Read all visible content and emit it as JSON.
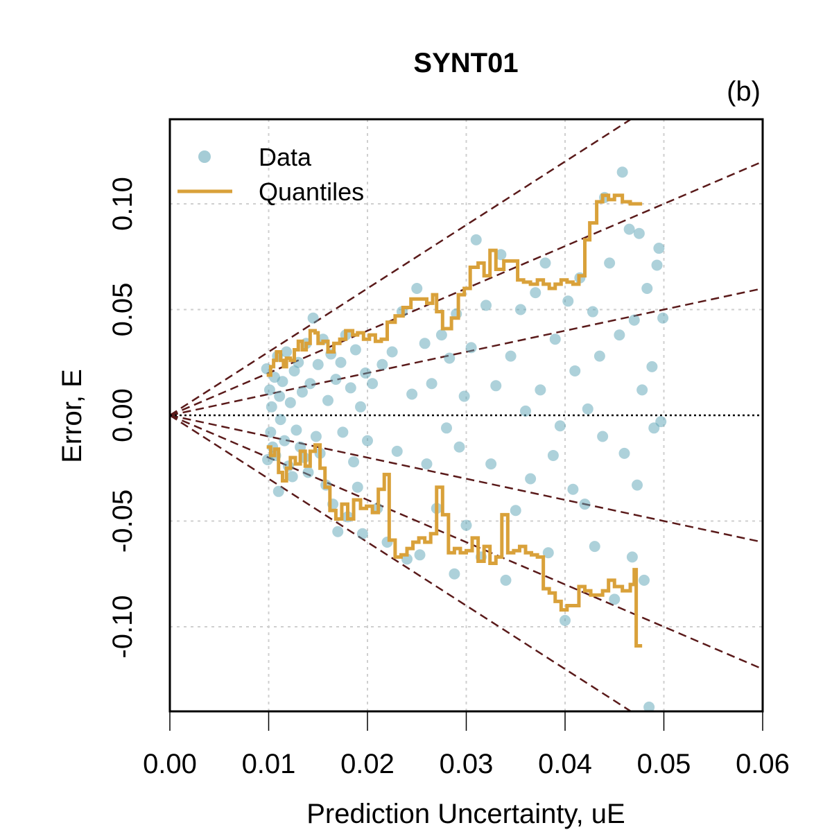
{
  "chart_data": {
    "type": "scatter",
    "title": "SYNT01",
    "panel_label": "(b)",
    "xlabel": "Prediction Uncertainty, uE",
    "ylabel": "Error, E",
    "xlim": [
      0.0,
      0.06
    ],
    "ylim": [
      -0.14,
      0.14
    ],
    "x_ticks": [
      0.0,
      0.01,
      0.02,
      0.03,
      0.04,
      0.05,
      0.06
    ],
    "x_tick_labels": [
      "0.00",
      "0.01",
      "0.02",
      "0.03",
      "0.04",
      "0.05",
      "0.06"
    ],
    "y_ticks": [
      -0.1,
      -0.05,
      0.0,
      0.05,
      0.1
    ],
    "y_tick_labels": [
      "-0.10",
      "-0.05",
      "0.00",
      "0.05",
      "0.10"
    ],
    "grid": true,
    "legend_position": "top-left",
    "legend": [
      {
        "label": "Data",
        "kind": "point",
        "color": "#5BA3B5"
      },
      {
        "label": "Quantiles",
        "kind": "line",
        "color": "#D9A13A"
      }
    ],
    "reference_lines": {
      "zero_line": {
        "y": 0.0,
        "style": "dotted",
        "color": "#000000"
      },
      "z_lines": {
        "slopes": [
          -3,
          -2,
          -1,
          1,
          2,
          3
        ],
        "style": "dashed",
        "color": "#5A1A1A"
      }
    },
    "series": [
      {
        "name": "Data",
        "kind": "scatter",
        "color": "#5BA3B5",
        "points": [
          [
            0.0098,
            0.022
          ],
          [
            0.0099,
            -0.021
          ],
          [
            0.0101,
            0.012
          ],
          [
            0.0102,
            -0.008
          ],
          [
            0.0103,
            0.004
          ],
          [
            0.0104,
            -0.015
          ],
          [
            0.0106,
            0.018
          ],
          [
            0.0107,
            -0.019
          ],
          [
            0.0109,
            0.028
          ],
          [
            0.011,
            -0.036
          ],
          [
            0.0111,
            0.009
          ],
          [
            0.0112,
            -0.002
          ],
          [
            0.0114,
            0.016
          ],
          [
            0.0116,
            -0.012
          ],
          [
            0.0118,
            0.03
          ],
          [
            0.012,
            -0.024
          ],
          [
            0.0122,
            0.006
          ],
          [
            0.0124,
            -0.029
          ],
          [
            0.0126,
            0.021
          ],
          [
            0.0128,
            -0.007
          ],
          [
            0.013,
            0.025
          ],
          [
            0.0132,
            -0.015
          ],
          [
            0.0134,
            0.011
          ],
          [
            0.0136,
            -0.02
          ],
          [
            0.0138,
            0.034
          ],
          [
            0.014,
            -0.027
          ],
          [
            0.0142,
            0.015
          ],
          [
            0.0145,
            0.046
          ],
          [
            0.0148,
            -0.01
          ],
          [
            0.015,
            0.024
          ],
          [
            0.0152,
            -0.018
          ],
          [
            0.0155,
            0.036
          ],
          [
            0.0158,
            -0.033
          ],
          [
            0.016,
            0.007
          ],
          [
            0.0163,
            0.029
          ],
          [
            0.0165,
            -0.042
          ],
          [
            0.0168,
            0.017
          ],
          [
            0.017,
            -0.055
          ],
          [
            0.0173,
            0.025
          ],
          [
            0.0175,
            -0.008
          ],
          [
            0.0178,
            0.038
          ],
          [
            0.018,
            -0.048
          ],
          [
            0.0183,
            0.013
          ],
          [
            0.0186,
            -0.022
          ],
          [
            0.0188,
            0.031
          ],
          [
            0.019,
            -0.034
          ],
          [
            0.0193,
            0.004
          ],
          [
            0.0195,
            -0.056
          ],
          [
            0.0198,
            0.02
          ],
          [
            0.02,
            -0.012
          ],
          [
            0.0205,
            0.015
          ],
          [
            0.021,
            -0.044
          ],
          [
            0.0215,
            0.024
          ],
          [
            0.022,
            -0.06
          ],
          [
            0.0225,
            0.03
          ],
          [
            0.023,
            -0.017
          ],
          [
            0.0235,
            0.049
          ],
          [
            0.024,
            -0.068
          ],
          [
            0.0245,
            0.01
          ],
          [
            0.025,
            0.06
          ],
          [
            0.0253,
            -0.066
          ],
          [
            0.0258,
            0.034
          ],
          [
            0.026,
            -0.023
          ],
          [
            0.0265,
            0.015
          ],
          [
            0.027,
            -0.044
          ],
          [
            0.0275,
            0.038
          ],
          [
            0.028,
            -0.006
          ],
          [
            0.0283,
            0.027
          ],
          [
            0.0288,
            -0.075
          ],
          [
            0.029,
            0.048
          ],
          [
            0.0293,
            -0.015
          ],
          [
            0.0298,
            0.009
          ],
          [
            0.03,
            -0.052
          ],
          [
            0.0305,
            0.032
          ],
          [
            0.031,
            0.083
          ],
          [
            0.0315,
            -0.067
          ],
          [
            0.032,
            0.052
          ],
          [
            0.0325,
            -0.023
          ],
          [
            0.033,
            0.014
          ],
          [
            0.0335,
            0.076
          ],
          [
            0.034,
            -0.078
          ],
          [
            0.0345,
            0.028
          ],
          [
            0.035,
            -0.045
          ],
          [
            0.0355,
            0.05
          ],
          [
            0.036,
            0.002
          ],
          [
            0.0365,
            -0.03
          ],
          [
            0.037,
            0.058
          ],
          [
            0.0375,
            0.012
          ],
          [
            0.038,
            0.072
          ],
          [
            0.0383,
            -0.065
          ],
          [
            0.0388,
            -0.019
          ],
          [
            0.039,
            0.036
          ],
          [
            0.0395,
            -0.005
          ],
          [
            0.04,
            -0.097
          ],
          [
            0.0403,
            0.054
          ],
          [
            0.0408,
            -0.035
          ],
          [
            0.041,
            0.021
          ],
          [
            0.0415,
            0.065
          ],
          [
            0.042,
            -0.042
          ],
          [
            0.0423,
            0.003
          ],
          [
            0.0428,
            0.049
          ],
          [
            0.043,
            -0.062
          ],
          [
            0.0435,
            0.028
          ],
          [
            0.0438,
            -0.01
          ],
          [
            0.044,
            0.103
          ],
          [
            0.0445,
            0.072
          ],
          [
            0.045,
            -0.087
          ],
          [
            0.0455,
            0.038
          ],
          [
            0.0458,
            0.115
          ],
          [
            0.046,
            -0.018
          ],
          [
            0.0465,
            0.088
          ],
          [
            0.0468,
            -0.067
          ],
          [
            0.047,
            0.045
          ],
          [
            0.0473,
            -0.033
          ],
          [
            0.0475,
            0.086
          ],
          [
            0.0478,
            0.012
          ],
          [
            0.048,
            -0.078
          ],
          [
            0.0483,
            0.06
          ],
          [
            0.0485,
            -0.138
          ],
          [
            0.0488,
            0.023
          ],
          [
            0.049,
            -0.006
          ],
          [
            0.0493,
            0.071
          ],
          [
            0.0495,
            0.079
          ],
          [
            0.0497,
            -0.003
          ],
          [
            0.0499,
            0.046
          ]
        ]
      },
      {
        "name": "Quantiles (upper)",
        "kind": "step-line",
        "color": "#D9A13A",
        "points": [
          [
            0.0098,
            0.019
          ],
          [
            0.0102,
            0.023
          ],
          [
            0.0105,
            0.026
          ],
          [
            0.0108,
            0.03
          ],
          [
            0.0112,
            0.026
          ],
          [
            0.0115,
            0.023
          ],
          [
            0.0118,
            0.027
          ],
          [
            0.0122,
            0.026
          ],
          [
            0.0126,
            0.031
          ],
          [
            0.013,
            0.035
          ],
          [
            0.0134,
            0.031
          ],
          [
            0.0138,
            0.034
          ],
          [
            0.0142,
            0.04
          ],
          [
            0.0147,
            0.039
          ],
          [
            0.015,
            0.034
          ],
          [
            0.0155,
            0.035
          ],
          [
            0.016,
            0.03
          ],
          [
            0.0166,
            0.034
          ],
          [
            0.0172,
            0.036
          ],
          [
            0.0178,
            0.04
          ],
          [
            0.0185,
            0.038
          ],
          [
            0.019,
            0.039
          ],
          [
            0.0196,
            0.036
          ],
          [
            0.0202,
            0.038
          ],
          [
            0.0208,
            0.035
          ],
          [
            0.0214,
            0.036
          ],
          [
            0.022,
            0.044
          ],
          [
            0.0228,
            0.047
          ],
          [
            0.0236,
            0.051
          ],
          [
            0.0244,
            0.055
          ],
          [
            0.0252,
            0.055
          ],
          [
            0.026,
            0.053
          ],
          [
            0.0266,
            0.057
          ],
          [
            0.027,
            0.049
          ],
          [
            0.0276,
            0.041
          ],
          [
            0.0285,
            0.046
          ],
          [
            0.0292,
            0.057
          ],
          [
            0.0298,
            0.06
          ],
          [
            0.0304,
            0.07
          ],
          [
            0.0312,
            0.072
          ],
          [
            0.0318,
            0.066
          ],
          [
            0.0324,
            0.078
          ],
          [
            0.033,
            0.069
          ],
          [
            0.0338,
            0.073
          ],
          [
            0.0346,
            0.073
          ],
          [
            0.0352,
            0.064
          ],
          [
            0.0358,
            0.063
          ],
          [
            0.0365,
            0.062
          ],
          [
            0.0372,
            0.064
          ],
          [
            0.0378,
            0.062
          ],
          [
            0.0384,
            0.06
          ],
          [
            0.039,
            0.062
          ],
          [
            0.0396,
            0.064
          ],
          [
            0.0402,
            0.063
          ],
          [
            0.0408,
            0.062
          ],
          [
            0.0414,
            0.066
          ],
          [
            0.042,
            0.083
          ],
          [
            0.0425,
            0.091
          ],
          [
            0.0432,
            0.101
          ],
          [
            0.0438,
            0.104
          ],
          [
            0.0444,
            0.102
          ],
          [
            0.045,
            0.104
          ],
          [
            0.0458,
            0.101
          ],
          [
            0.0466,
            0.1
          ],
          [
            0.0478,
            0.1
          ]
        ]
      },
      {
        "name": "Quantiles (lower)",
        "kind": "step-line",
        "color": "#D9A13A",
        "points": [
          [
            0.0098,
            -0.015
          ],
          [
            0.0102,
            -0.019
          ],
          [
            0.0106,
            -0.016
          ],
          [
            0.011,
            -0.027
          ],
          [
            0.0114,
            -0.031
          ],
          [
            0.0118,
            -0.025
          ],
          [
            0.0122,
            -0.02
          ],
          [
            0.0127,
            -0.023
          ],
          [
            0.0132,
            -0.017
          ],
          [
            0.0137,
            -0.024
          ],
          [
            0.0142,
            -0.017
          ],
          [
            0.0147,
            -0.014
          ],
          [
            0.0152,
            -0.025
          ],
          [
            0.0157,
            -0.034
          ],
          [
            0.0162,
            -0.045
          ],
          [
            0.0168,
            -0.049
          ],
          [
            0.0174,
            -0.042
          ],
          [
            0.018,
            -0.049
          ],
          [
            0.0186,
            -0.04
          ],
          [
            0.0193,
            -0.044
          ],
          [
            0.0199,
            -0.043
          ],
          [
            0.0205,
            -0.046
          ],
          [
            0.0211,
            -0.035
          ],
          [
            0.0217,
            -0.028
          ],
          [
            0.0222,
            -0.059
          ],
          [
            0.0228,
            -0.067
          ],
          [
            0.0234,
            -0.066
          ],
          [
            0.024,
            -0.063
          ],
          [
            0.0246,
            -0.06
          ],
          [
            0.0252,
            -0.058
          ],
          [
            0.0258,
            -0.06
          ],
          [
            0.0264,
            -0.056
          ],
          [
            0.027,
            -0.034
          ],
          [
            0.0276,
            -0.047
          ],
          [
            0.0282,
            -0.065
          ],
          [
            0.0288,
            -0.063
          ],
          [
            0.0294,
            -0.065
          ],
          [
            0.03,
            -0.064
          ],
          [
            0.0306,
            -0.058
          ],
          [
            0.0312,
            -0.069
          ],
          [
            0.0318,
            -0.062
          ],
          [
            0.0324,
            -0.07
          ],
          [
            0.033,
            -0.067
          ],
          [
            0.0336,
            -0.047
          ],
          [
            0.0342,
            -0.065
          ],
          [
            0.0348,
            -0.064
          ],
          [
            0.0354,
            -0.062
          ],
          [
            0.036,
            -0.065
          ],
          [
            0.0366,
            -0.066
          ],
          [
            0.0372,
            -0.067
          ],
          [
            0.0378,
            -0.082
          ],
          [
            0.0384,
            -0.084
          ],
          [
            0.039,
            -0.088
          ],
          [
            0.0396,
            -0.092
          ],
          [
            0.0402,
            -0.09
          ],
          [
            0.0408,
            -0.09
          ],
          [
            0.0414,
            -0.081
          ],
          [
            0.042,
            -0.083
          ],
          [
            0.0426,
            -0.085
          ],
          [
            0.0432,
            -0.085
          ],
          [
            0.0438,
            -0.083
          ],
          [
            0.0444,
            -0.078
          ],
          [
            0.045,
            -0.081
          ],
          [
            0.0458,
            -0.083
          ],
          [
            0.0466,
            -0.08
          ],
          [
            0.047,
            -0.073
          ],
          [
            0.0472,
            -0.109
          ],
          [
            0.0478,
            -0.109
          ]
        ]
      }
    ]
  }
}
